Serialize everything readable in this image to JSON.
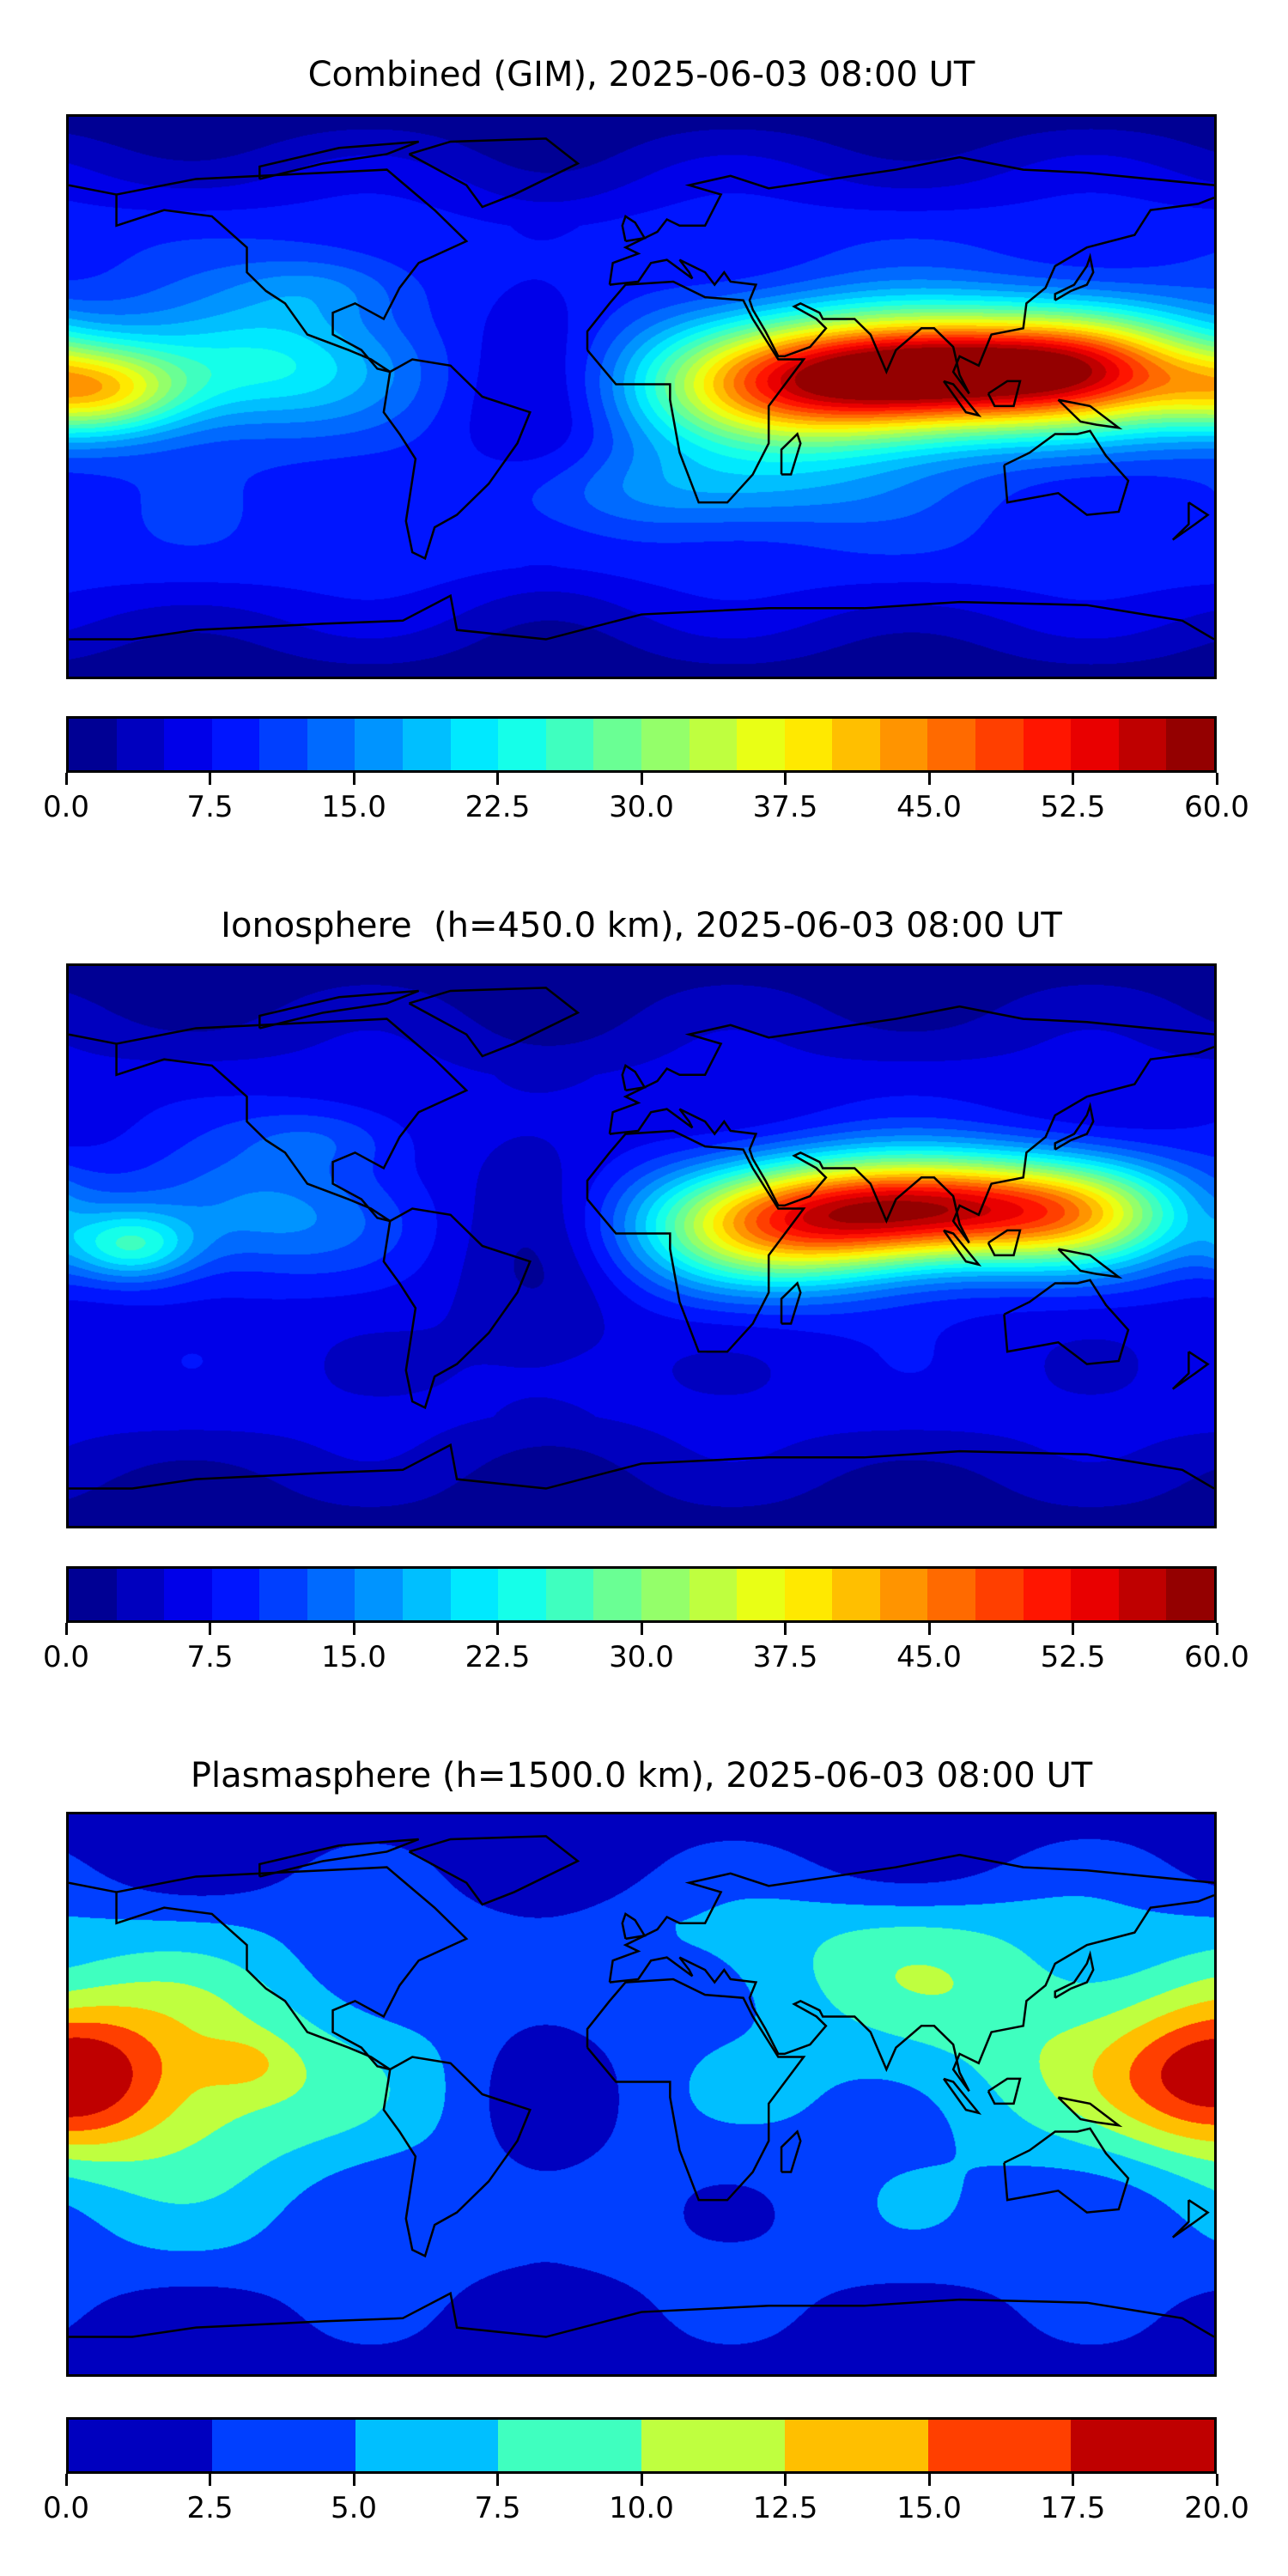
{
  "chart_data": [
    {
      "type": "heatmap",
      "title": "Combined (GIM), 2025-06-03 08:00 UT",
      "projection": "plate carree, global",
      "colormap": "jet",
      "levels": [
        0,
        60,
        2.5
      ],
      "colorbar_ticks": [
        "0.0",
        "7.5",
        "15.0",
        "22.5",
        "30.0",
        "37.5",
        "45.0",
        "52.5",
        "60.0"
      ],
      "colorbar_tick_values": [
        0,
        7.5,
        15,
        22.5,
        30,
        37.5,
        45,
        52.5,
        60
      ],
      "base_value": 9,
      "approx_peaks": [
        {
          "lon": 100,
          "lat": 8,
          "value": 48,
          "slon": 40,
          "slat": 13
        },
        {
          "lon": 45,
          "lat": 3,
          "value": 28,
          "slon": 35,
          "slat": 15
        },
        {
          "lon": 145,
          "lat": 10,
          "value": 18,
          "slon": 25,
          "slat": 14
        },
        {
          "lon": -170,
          "lat": 2,
          "value": 24,
          "slon": 20,
          "slat": 10
        },
        {
          "lon": -120,
          "lat": 10,
          "value": 14,
          "slon": 30,
          "slat": 14
        },
        {
          "lon": -100,
          "lat": 35,
          "value": 6,
          "slon": 20,
          "slat": 8
        },
        {
          "lon": 20,
          "lat": -30,
          "value": 8,
          "slon": 40,
          "slat": 10
        },
        {
          "lon": -30,
          "lat": 0,
          "value": -5,
          "slon": 20,
          "slat": 40
        }
      ]
    },
    {
      "type": "heatmap",
      "title": "Ionosphere  (h=450.0 km), 2025-06-03 08:00 UT",
      "projection": "plate carree, global",
      "colormap": "jet",
      "levels": [
        0,
        60,
        2.5
      ],
      "colorbar_ticks": [
        "0.0",
        "7.5",
        "15.0",
        "22.5",
        "30.0",
        "37.5",
        "45.0",
        "52.5",
        "60.0"
      ],
      "colorbar_tick_values": [
        0,
        7.5,
        15,
        22.5,
        30,
        37.5,
        45,
        52.5,
        60
      ],
      "base_value": 6,
      "approx_peaks": [
        {
          "lon": 90,
          "lat": 12,
          "value": 44,
          "slon": 38,
          "slat": 12
        },
        {
          "lon": 40,
          "lat": 5,
          "value": 26,
          "slon": 32,
          "slat": 14
        },
        {
          "lon": 140,
          "lat": 10,
          "value": 18,
          "slon": 25,
          "slat": 13
        },
        {
          "lon": -160,
          "lat": 0,
          "value": 16,
          "slon": 14,
          "slat": 8
        },
        {
          "lon": -120,
          "lat": 10,
          "value": 10,
          "slon": 30,
          "slat": 14
        },
        {
          "lon": -100,
          "lat": 35,
          "value": 6,
          "slon": 20,
          "slat": 8
        },
        {
          "lon": -30,
          "lat": 0,
          "value": -4,
          "slon": 20,
          "slat": 40
        }
      ]
    },
    {
      "type": "heatmap",
      "title": "Plasmasphere (h=1500.0 km), 2025-06-03 08:00 UT",
      "projection": "plate carree, global",
      "colormap": "jet",
      "levels": [
        0,
        20,
        2.5
      ],
      "colorbar_ticks": [
        "0.0",
        "2.5",
        "5.0",
        "7.5",
        "10.0",
        "12.5",
        "15.0",
        "17.5",
        "20.0"
      ],
      "colorbar_tick_values": [
        0,
        2.5,
        5,
        7.5,
        10,
        12.5,
        15,
        17.5,
        20
      ],
      "base_value": 3.5,
      "approx_peaks": [
        {
          "lon": -150,
          "lat": 5,
          "value": 9,
          "slon": 45,
          "slat": 25
        },
        {
          "lon": 180,
          "lat": 5,
          "value": 8,
          "slon": 20,
          "slat": 15
        },
        {
          "lon": -125,
          "lat": 10,
          "value": 3,
          "slon": 10,
          "slat": 6
        },
        {
          "lon": 120,
          "lat": 20,
          "value": 4.5,
          "slon": 50,
          "slat": 25
        },
        {
          "lon": 60,
          "lat": 45,
          "value": 3,
          "slon": 50,
          "slat": 15
        },
        {
          "lon": -30,
          "lat": 0,
          "value": -2,
          "slon": 15,
          "slat": 60
        }
      ]
    }
  ]
}
